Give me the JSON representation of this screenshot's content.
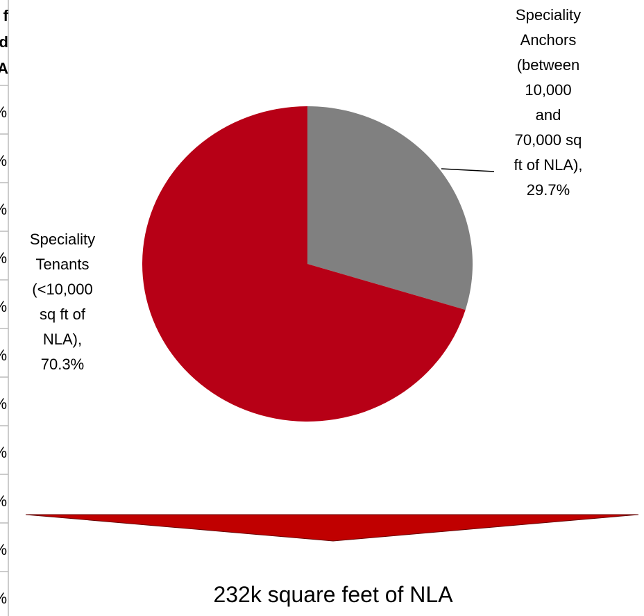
{
  "table_fragment": {
    "header": [
      "f",
      "d",
      "A"
    ],
    "cells": [
      "%",
      "%",
      "%",
      "%",
      "%",
      "%",
      "%",
      "%",
      "%",
      "%",
      "%"
    ]
  },
  "chart_data": {
    "type": "pie",
    "values": [
      29.7,
      70.3
    ],
    "data_labels": [
      "Speciality\nAnchors\n(between\n10,000\nand\n70,000 sq\nft of NLA),\n29.7%",
      "Speciality\nTenants\n(<10,000\nsq ft of\nNLA),\n70.3%"
    ],
    "colors": [
      "#808080",
      "#b70016"
    ]
  },
  "footer": {
    "caption": "232k square feet of NLA"
  }
}
